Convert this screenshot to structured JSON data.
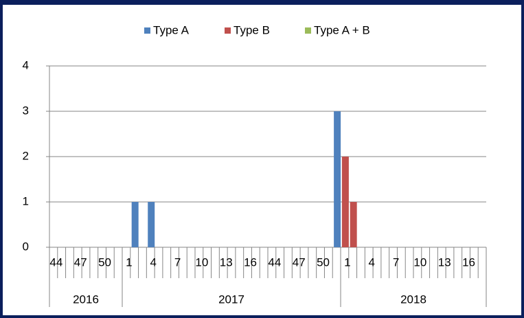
{
  "chart_data": {
    "type": "bar",
    "categories": [
      "44",
      null,
      null,
      "47",
      null,
      null,
      "50",
      null,
      null,
      "1",
      null,
      null,
      "4",
      null,
      null,
      "7",
      null,
      null,
      "10",
      null,
      null,
      "13",
      null,
      null,
      "16",
      null,
      null,
      "44",
      null,
      null,
      "47",
      null,
      null,
      "50",
      null,
      null,
      "1",
      null,
      null,
      "4",
      null,
      null,
      "7",
      null,
      null,
      "10",
      null,
      null,
      "13",
      null,
      null,
      "16",
      null,
      null
    ],
    "groups": [
      {
        "name": "2016",
        "span": 9
      },
      {
        "name": "2017",
        "span": 27
      },
      {
        "name": "2018",
        "span": 18
      }
    ],
    "series": [
      {
        "name": "Type A",
        "color": "#4f81bd",
        "values": [
          0,
          0,
          0,
          0,
          0,
          0,
          0,
          0,
          0,
          0,
          1,
          0,
          1,
          0,
          0,
          0,
          0,
          0,
          0,
          0,
          0,
          0,
          0,
          0,
          0,
          0,
          0,
          0,
          0,
          0,
          0,
          0,
          0,
          0,
          0,
          3,
          0,
          0,
          0,
          0,
          0,
          0,
          0,
          0,
          0,
          0,
          0,
          0,
          0,
          0,
          0,
          0,
          0,
          0
        ]
      },
      {
        "name": "Type B",
        "color": "#c0504d",
        "values": [
          0,
          0,
          0,
          0,
          0,
          0,
          0,
          0,
          0,
          0,
          0,
          0,
          0,
          0,
          0,
          0,
          0,
          0,
          0,
          0,
          0,
          0,
          0,
          0,
          0,
          0,
          0,
          0,
          0,
          0,
          0,
          0,
          0,
          0,
          0,
          0,
          2,
          1,
          0,
          0,
          0,
          0,
          0,
          0,
          0,
          0,
          0,
          0,
          0,
          0,
          0,
          0,
          0,
          0
        ]
      },
      {
        "name": "Type A + B",
        "color": "#9bbb59",
        "values": [
          0,
          0,
          0,
          0,
          0,
          0,
          0,
          0,
          0,
          0,
          0,
          0,
          0,
          0,
          0,
          0,
          0,
          0,
          0,
          0,
          0,
          0,
          0,
          0,
          0,
          0,
          0,
          0,
          0,
          0,
          0,
          0,
          0,
          0,
          0,
          0,
          0,
          0,
          0,
          0,
          0,
          0,
          0,
          0,
          0,
          0,
          0,
          0,
          0,
          0,
          0,
          0,
          0,
          0
        ]
      }
    ],
    "ylim": [
      0,
      4
    ],
    "yticks": [
      0,
      1,
      2,
      3,
      4
    ],
    "grid": true,
    "legend": "top"
  }
}
